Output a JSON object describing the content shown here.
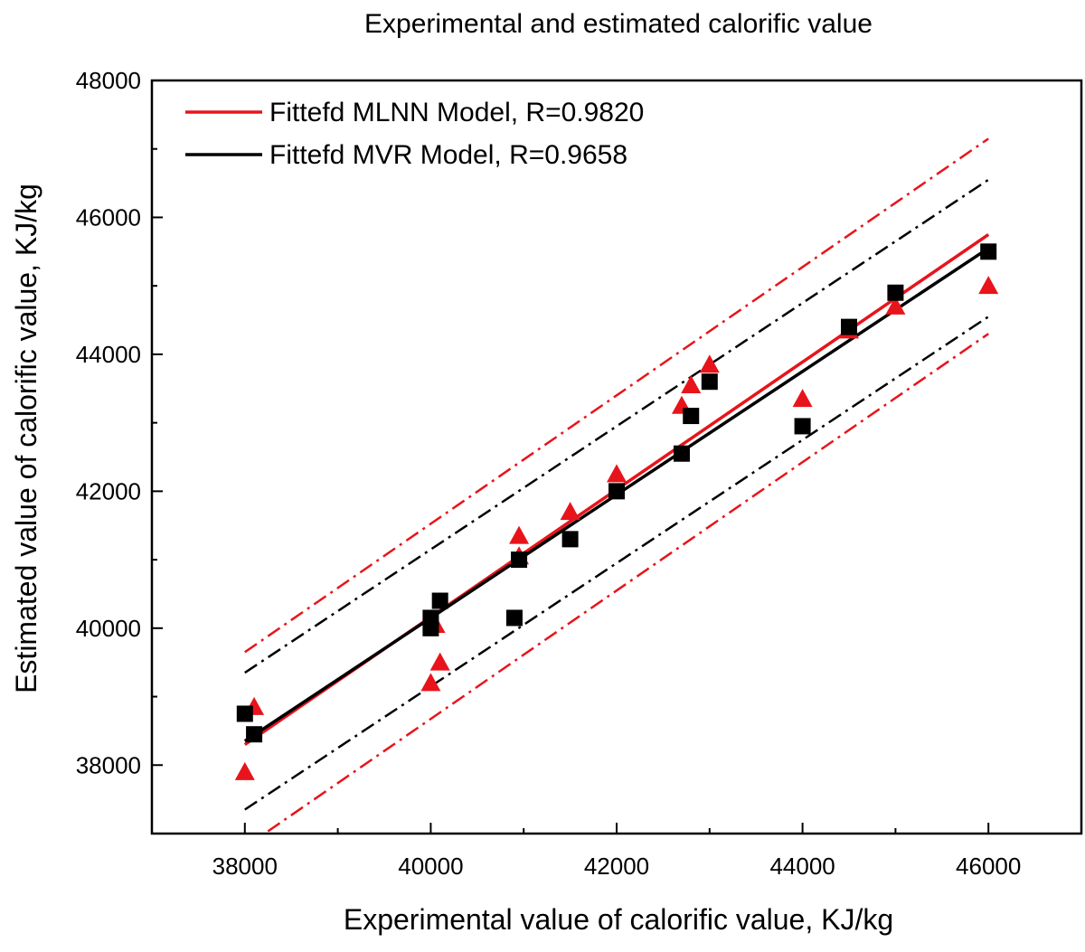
{
  "chart_data": {
    "type": "scatter",
    "title": "Experimental and estimated calorific value",
    "xlabel": "Experimental value of calorific value, KJ/kg",
    "ylabel": "Estimated value of calorific value, KJ/kg",
    "xlim": [
      37000,
      47000
    ],
    "ylim": [
      37000,
      48000
    ],
    "x_ticks": [
      38000,
      40000,
      42000,
      44000,
      46000
    ],
    "y_ticks": [
      38000,
      40000,
      42000,
      44000,
      46000,
      48000
    ],
    "grid": false,
    "legend_position": "top-left",
    "series": [
      {
        "name": "",
        "marker": "triangle",
        "color": "#e8141b",
        "points": [
          [
            38000,
            37900
          ],
          [
            38100,
            38850
          ],
          [
            40000,
            39200
          ],
          [
            40050,
            40050
          ],
          [
            40100,
            39500
          ],
          [
            40950,
            41050
          ],
          [
            40950,
            41350
          ],
          [
            41500,
            41700
          ],
          [
            42000,
            42250
          ],
          [
            42700,
            43250
          ],
          [
            42800,
            43550
          ],
          [
            43000,
            43850
          ],
          [
            44000,
            43350
          ],
          [
            44500,
            44350
          ],
          [
            45000,
            44700
          ],
          [
            46000,
            45000
          ]
        ]
      },
      {
        "name": "",
        "marker": "square",
        "color": "#000000",
        "points": [
          [
            38000,
            38750
          ],
          [
            38100,
            38450
          ],
          [
            40000,
            40000
          ],
          [
            40000,
            40150
          ],
          [
            40100,
            40400
          ],
          [
            40950,
            41000
          ],
          [
            40900,
            40150
          ],
          [
            41500,
            41300
          ],
          [
            42000,
            42000
          ],
          [
            42700,
            42550
          ],
          [
            42800,
            43100
          ],
          [
            43000,
            43600
          ],
          [
            44000,
            42950
          ],
          [
            44500,
            44400
          ],
          [
            45000,
            44900
          ],
          [
            46000,
            45500
          ]
        ]
      }
    ],
    "fit_lines": [
      {
        "name": "Fittefd MLNN Model, R=0.9820",
        "color": "#e8141b",
        "from": [
          38000,
          38300
        ],
        "to": [
          46000,
          45750
        ]
      },
      {
        "name": "Fittefd MVR Model, R=0.9658",
        "color": "#000000",
        "from": [
          38000,
          38350
        ],
        "to": [
          46000,
          45550
        ]
      }
    ],
    "bound_lines": [
      {
        "color": "#e8141b",
        "from": [
          38000,
          39650
        ],
        "to": [
          46000,
          47150
        ]
      },
      {
        "color": "#e8141b",
        "from": [
          38000,
          36800
        ],
        "to": [
          46000,
          44300
        ]
      },
      {
        "color": "#000000",
        "from": [
          38000,
          39350
        ],
        "to": [
          46000,
          46550
        ]
      },
      {
        "color": "#000000",
        "from": [
          38000,
          37350
        ],
        "to": [
          46000,
          44550
        ]
      }
    ]
  }
}
